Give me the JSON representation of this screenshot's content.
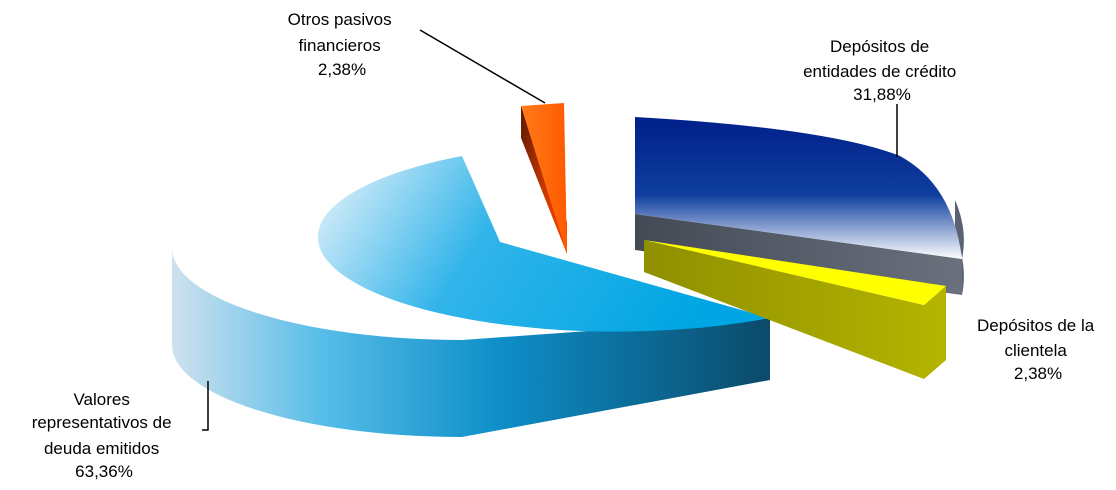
{
  "chart_data": {
    "type": "pie",
    "style": "3d-exploded",
    "legend": "none",
    "slices": [
      {
        "label_lines": [
          "Depósitos de",
          "entidades de crédito"
        ],
        "value": 31.88,
        "value_label": "31,88%",
        "color": "#0a2f8f"
      },
      {
        "label_lines": [
          "Depósitos de la",
          "clientela"
        ],
        "value": 2.38,
        "value_label": "2,38%",
        "color": "#ffff00"
      },
      {
        "label_lines": [
          "Valores",
          "representativos de",
          "deuda emitidos"
        ],
        "value": 63.36,
        "value_label": "63,36%",
        "color": "#0aa8e6"
      },
      {
        "label_lines": [
          "Otros pasivos",
          "financieros"
        ],
        "value": 2.38,
        "value_label": "2,38%",
        "color": "#ff6a00"
      }
    ]
  }
}
